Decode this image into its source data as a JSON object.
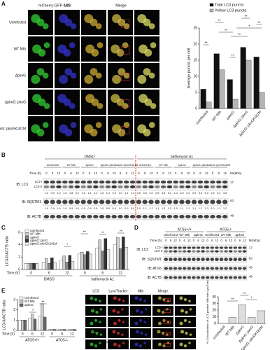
{
  "panel_labels": [
    "A",
    "B",
    "C",
    "D",
    "E"
  ],
  "panel_a": {
    "image_columns": [
      "mCherry-GFP-LC3",
      "Mtb",
      "Merge"
    ],
    "image_rows": [
      "Uninfected",
      "WT Mtb",
      "ΔpknG",
      "ΔpknG::pknG",
      "ΔpknG::pknGK181M"
    ]
  },
  "blot_b": {
    "conditions": [
      "DMSO",
      "bafilomycin A1"
    ],
    "groups": [
      "Uninfected",
      "WT Mtb",
      "ΔpknG",
      "ΔpknG::pknG",
      "ΔpknG::pknGK181M"
    ],
    "time_label": "Time (h)",
    "times": [
      "0",
      "6",
      "12"
    ],
    "mr_label": "Mr(kDa)",
    "rows": [
      {
        "label": "IB: LC3",
        "bands": [
          "LC3-I",
          "LC3-II"
        ],
        "mr": "17",
        "quant": [
          "1.0",
          "0.9",
          "1.0",
          "1.5",
          "1.8",
          "2.2",
          "1.0",
          "1.1",
          "1.2",
          "1.6",
          "1.9",
          "2.3",
          "1.0",
          "1.1",
          "1.3",
          "2.5",
          "3.5",
          "4.0",
          "2.8",
          "4.8",
          "5.2",
          "2.4",
          "3.0",
          "3.4",
          "2.9",
          "5.0",
          "5.3",
          "2.5",
          "3.2",
          "3.6"
        ]
      },
      {
        "label": "IB: SQSTM1",
        "mr": "63",
        "quant": [
          "1.0",
          "0.9",
          "1.0",
          "1.0",
          "0.9",
          "0.9",
          "0.9",
          "0.9",
          "0.8",
          "1.0",
          "0.9",
          "0.9",
          "1.0",
          "0.9",
          "0.9",
          "1.0",
          "1.1",
          "1.2",
          "1.1",
          "1.2",
          "1.3",
          "1.0",
          "1.1",
          "1.1",
          "1.1",
          "1.2",
          "1.3",
          "1.0",
          "1.1",
          "1.2"
        ]
      },
      {
        "label": "IB: ACTB",
        "mr": "48"
      }
    ]
  },
  "blot_d": {
    "genotypes": [
      "ATG5+/+",
      "ATG5-/-"
    ],
    "groups": [
      "Uninfected",
      "WT Mtb",
      "ΔpknG"
    ],
    "time_label": "Time (h)",
    "times": [
      "0",
      "6",
      "12"
    ],
    "mr_label": "Mr(kDa)",
    "rows": [
      {
        "label": "IB: LC3",
        "bands": [
          "LC3-I",
          "LC3-II"
        ],
        "mr": "17"
      },
      {
        "label": "IB: SQSTM1",
        "mr": "63"
      },
      {
        "label": "IB: ATG5",
        "mr": "48"
      },
      {
        "label": "IB: ACTB",
        "mr": "48"
      }
    ]
  },
  "panel_e": {
    "image_columns": [
      "LC3",
      "LysoTracker",
      "Mtb",
      "Merge"
    ],
    "image_rows": [
      "Uninfected",
      "WT Mtb",
      "ΔpknG",
      "ΔpknG::pknG",
      "ΔpknG::pknGK181M"
    ]
  },
  "chart_data": [
    {
      "type": "bar",
      "y_label": "Average puncta per cell",
      "categories": [
        "Uninfected",
        "WT Mtb",
        "ΔpknG",
        "ΔpknG::pknG",
        "ΔpknG::pknGK181M"
      ],
      "series": [
        {
          "name": "Total LC3 puncta",
          "color": "#111111",
          "values": [
            6,
            17,
            9,
            19,
            16
          ]
        },
        {
          "name": "Yellow LC3 puncta",
          "color": "#b5b5b5",
          "values": [
            2,
            12,
            3,
            15,
            5
          ]
        }
      ],
      "ylim": [
        0,
        25
      ],
      "yticks": [
        0,
        5,
        10,
        15,
        20,
        25
      ],
      "annotations": [
        "**",
        "**",
        "**",
        "**",
        "**",
        "**",
        "**",
        "*"
      ]
    },
    {
      "type": "bar",
      "y_label": "LC3-II/ACTB ratio",
      "x_label": "Time (h)",
      "categories": [
        "0",
        "6",
        "12",
        "0",
        "6",
        "12"
      ],
      "x_groups": [
        "DMSO",
        "bafilomycin A1"
      ],
      "series": [
        {
          "name": "Uninfected",
          "color": "#ffffff",
          "values": [
            1.0,
            1.2,
            1.5,
            2.5,
            3.5,
            4.0
          ]
        },
        {
          "name": "WT Mtb",
          "color": "#cccccc",
          "values": [
            1.0,
            1.8,
            2.2,
            2.8,
            4.8,
            5.2
          ]
        },
        {
          "name": "ΔpknG",
          "color": "#888888",
          "values": [
            1.0,
            1.0,
            1.2,
            2.4,
            3.0,
            3.4
          ]
        },
        {
          "name": "ΔpknG::pknG",
          "color": "#333333",
          "values": [
            1.0,
            1.9,
            2.3,
            2.9,
            5.0,
            5.3
          ]
        },
        {
          "name": "ΔpknG::pknGK181M",
          "color": "#e6e6e6",
          "values": [
            1.0,
            1.1,
            1.3,
            2.5,
            3.2,
            3.6
          ]
        }
      ],
      "ylim": [
        0,
        6
      ],
      "yticks": [
        0,
        2,
        4,
        6
      ],
      "annotations": [
        "*",
        "**",
        "**",
        "**"
      ]
    },
    {
      "type": "bar",
      "y_label": "LC3-II/ACTB ratio",
      "x_label": "Time (h)",
      "categories": [
        "0",
        "6",
        "12",
        "0",
        "6",
        "12"
      ],
      "x_groups": [
        "ATG5+/+",
        "ATG5-/-"
      ],
      "series": [
        {
          "name": "Uninfected",
          "color": "#ffffff",
          "values": [
            1.0,
            1.2,
            1.4,
            0.1,
            0.1,
            0.1
          ]
        },
        {
          "name": "WT Mtb",
          "color": "#cccccc",
          "values": [
            1.0,
            1.6,
            2.6,
            0.1,
            0.1,
            0.1
          ]
        },
        {
          "name": "ΔpknG",
          "color": "#666666",
          "values": [
            1.0,
            1.1,
            1.3,
            0.1,
            0.1,
            0.1
          ]
        }
      ],
      "ylim": [
        0,
        3
      ],
      "yticks": [
        0,
        1,
        2,
        3
      ],
      "annotations": [
        "*",
        "**"
      ]
    },
    {
      "type": "bar",
      "y_label": "% Colocalization of LC3-positive Mtb with LysoTracker",
      "categories": [
        "Uninfected",
        "WT Mtb",
        "ΔpknG",
        "ΔpknG::pknG",
        "ΔpknG::pknGK181M"
      ],
      "series": [
        {
          "name": "Colocalization",
          "color": "#dddddd",
          "values": [
            0,
            9,
            28,
            9,
            19
          ]
        }
      ],
      "ylim": [
        0,
        40
      ],
      "yticks": [
        0,
        10,
        20,
        30,
        40
      ],
      "annotations": [
        "**",
        "**",
        "*"
      ],
      "legend": false
    }
  ]
}
